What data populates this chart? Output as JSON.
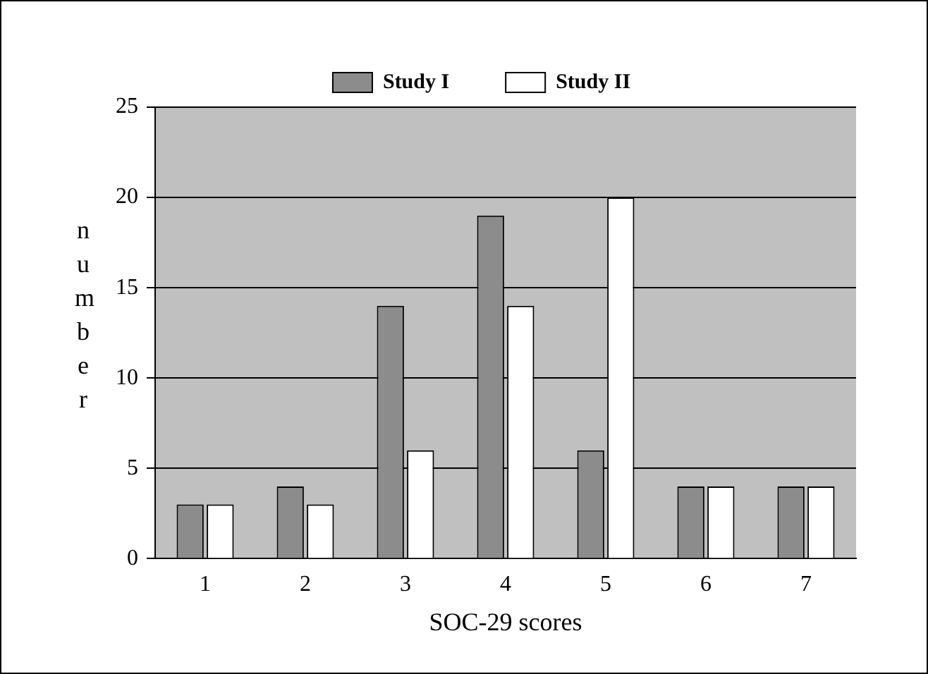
{
  "chart_data": {
    "type": "bar",
    "xlabel": "SOC-29 scores",
    "ylabel": "number",
    "categories": [
      "1",
      "2",
      "3",
      "4",
      "5",
      "6",
      "7"
    ],
    "series": [
      {
        "name": "Study I",
        "color": "#8c8c8c",
        "values": [
          3,
          4,
          14,
          19,
          6,
          4,
          4
        ]
      },
      {
        "name": "Study II",
        "color": "#ffffff",
        "values": [
          3,
          3,
          6,
          14,
          20,
          4,
          4
        ]
      }
    ],
    "ylim": [
      0,
      25
    ],
    "yticks": [
      0,
      5,
      10,
      15,
      20,
      25
    ],
    "grid": "y",
    "legend": "top"
  }
}
